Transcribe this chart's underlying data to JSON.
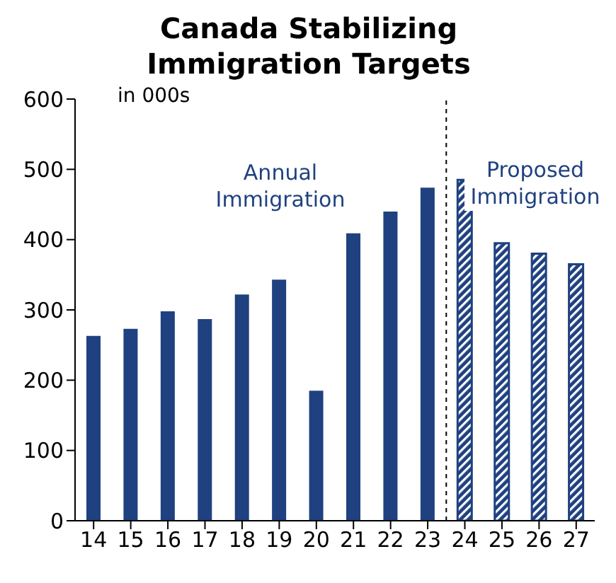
{
  "chart_data": {
    "type": "bar",
    "title": "Canada Stabilizing Immigration Targets",
    "x": [
      14,
      15,
      16,
      17,
      18,
      19,
      20,
      21,
      22,
      23,
      24,
      25,
      26,
      27
    ],
    "xlim": [
      13.5,
      27.5
    ],
    "xticks": [
      14,
      15,
      16,
      17,
      18,
      19,
      20,
      21,
      22,
      23,
      24,
      25,
      26,
      27
    ],
    "ylim": [
      0,
      600
    ],
    "yticks": [
      0,
      100,
      200,
      300,
      400,
      500,
      600
    ],
    "series": [
      {
        "name": "Annual Immigration",
        "color": "#1f4180",
        "values": [
          263,
          273,
          298,
          287,
          322,
          343,
          185,
          409,
          440,
          474,
          null,
          null,
          null,
          null
        ]
      },
      {
        "name": "Proposed Immigration",
        "color": "#1f4180",
        "values": [
          null,
          null,
          null,
          null,
          null,
          null,
          null,
          null,
          null,
          null,
          485,
          395,
          380,
          365
        ]
      }
    ],
    "annotations": [
      "in 000s"
    ],
    "ref_lines": [
      {
        "axis": "x",
        "value": 23.5,
        "line_style": "dashed",
        "color": "#000000"
      }
    ]
  }
}
